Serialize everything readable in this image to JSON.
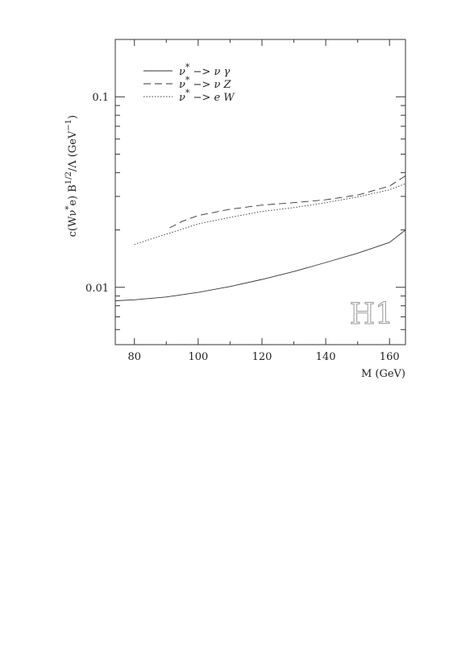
{
  "chart_data": {
    "type": "line",
    "title": "",
    "xlabel": "M  (GeV)",
    "ylabel_parts": [
      "c(W",
      "ν",
      "*",
      "e) B",
      "1/2",
      "/Λ  (GeV",
      "−1",
      ")"
    ],
    "xlim": [
      74,
      165
    ],
    "ylim": [
      0.005,
      0.2
    ],
    "yscale": "log",
    "x_ticks": [
      80,
      100,
      120,
      140,
      160
    ],
    "y_tick_labels": [
      {
        "value": 0.01,
        "label": "0.01"
      },
      {
        "value": 0.1,
        "label": "0.1"
      }
    ],
    "grid": false,
    "legend_position": "top-left",
    "series": [
      {
        "name_parts": [
          "ν",
          "*",
          " −> ν γ"
        ],
        "dash": "solid",
        "x": [
          74,
          80,
          90,
          100,
          110,
          120,
          130,
          140,
          150,
          160,
          165
        ],
        "y": [
          0.0085,
          0.0086,
          0.0089,
          0.0094,
          0.0101,
          0.011,
          0.0121,
          0.0135,
          0.0151,
          0.0172,
          0.02
        ]
      },
      {
        "name_parts": [
          "ν",
          "*",
          " −> ν Z"
        ],
        "dash": "dashed",
        "x": [
          91,
          95,
          100,
          110,
          120,
          130,
          140,
          150,
          160,
          165
        ],
        "y": [
          0.0205,
          0.0222,
          0.0238,
          0.0257,
          0.027,
          0.0278,
          0.0288,
          0.0305,
          0.034,
          0.0385
        ]
      },
      {
        "name_parts": [
          "ν",
          "*",
          " −> e W"
        ],
        "dash": "dotted",
        "x": [
          80,
          90,
          100,
          110,
          120,
          130,
          140,
          150,
          160,
          165
        ],
        "y": [
          0.0168,
          0.019,
          0.0215,
          0.0233,
          0.025,
          0.0262,
          0.0278,
          0.0298,
          0.0325,
          0.035
        ]
      }
    ],
    "logo": "H1"
  }
}
